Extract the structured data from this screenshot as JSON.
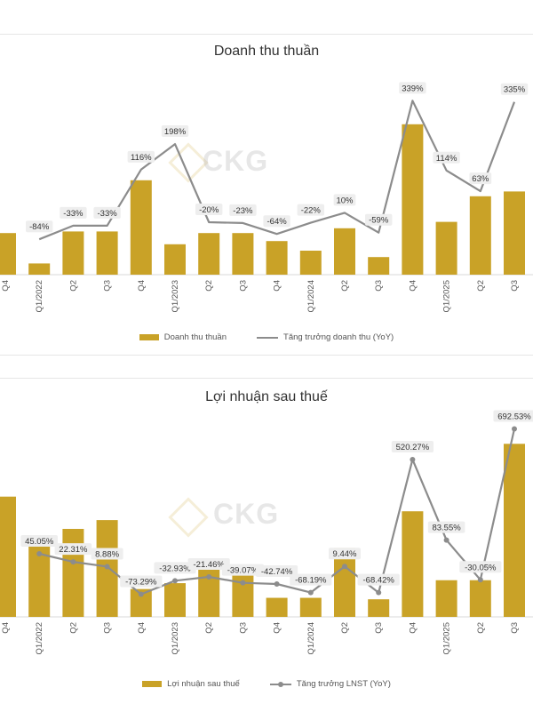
{
  "watermark": "CKG",
  "chart_data": [
    {
      "type": "bar",
      "title": "Doanh thu thuần",
      "categories": [
        "Q4",
        "Q1/2022",
        "Q2",
        "Q3",
        "Q4",
        "Q1/2023",
        "Q2",
        "Q3",
        "Q4",
        "Q1/2024",
        "Q2",
        "Q3",
        "Q4",
        "Q1/2025",
        "Q2",
        "Q3"
      ],
      "series": [
        {
          "name": "Doanh thu thuần",
          "type": "bar",
          "values": [
            13,
            3.5,
            13.5,
            13.5,
            29.5,
            9.5,
            13,
            13,
            10.5,
            7.5,
            14.5,
            5.5,
            47,
            16.5,
            24.5,
            26
          ]
        },
        {
          "name": "Tăng trưởng doanh thu (YoY)",
          "type": "line",
          "values": [
            null,
            -84,
            -33,
            -33,
            116,
            198,
            -20,
            -23,
            -64,
            -22,
            10,
            -59,
            339,
            114,
            63,
            335
          ]
        }
      ],
      "labels": [
        "",
        "-84%",
        "-33%",
        "-33%",
        "116%",
        "198%",
        "-20%",
        "-23%",
        "-64%",
        "-22%",
        "10%",
        "-59%",
        "339%",
        "114%",
        "63%",
        "335%"
      ],
      "legend": [
        "Doanh thu thuần",
        "Tăng trưởng doanh thu (YoY)"
      ],
      "legend_position": "bottom",
      "bar_color": "#c9a227",
      "line_color": "#8c8c8c"
    },
    {
      "type": "bar",
      "title": "Lợi nhuận sau thuế",
      "categories": [
        "Q4",
        "Q1/2022",
        "Q2",
        "Q3",
        "Q4",
        "Q1/2023",
        "Q2",
        "Q3",
        "Q4",
        "Q1/2024",
        "Q2",
        "Q3",
        "Q4",
        "Q1/2025",
        "Q2",
        "Q3"
      ],
      "series": [
        {
          "name": "Lợi nhuận sau thuế",
          "type": "bar",
          "values": [
            41,
            26,
            30,
            33,
            9.5,
            11.5,
            19,
            14.5,
            6.5,
            6.5,
            23.5,
            6,
            36,
            12.5,
            12.5,
            59
          ]
        },
        {
          "name": "Tăng trưởng LNST (YoY)",
          "type": "line",
          "values": [
            null,
            45.05,
            22.31,
            8.88,
            -73.29,
            -32.93,
            -21.46,
            -39.07,
            -42.74,
            -68.19,
            9.44,
            -68.42,
            520.27,
            83.55,
            -30.05,
            692.53
          ]
        }
      ],
      "labels": [
        "",
        "45.05%",
        "22.31%",
        "8.88%",
        "-73.29%",
        "-32.93%",
        "-21.46%",
        "-39.07%",
        "-42.74%",
        "-68.19%",
        "9.44%",
        "-68.42%",
        "520.27%",
        "83.55%",
        "-30.05%",
        "692.53%"
      ],
      "legend": [
        "Lợi nhuận sau thuế",
        "Tăng trưởng LNST (YoY)"
      ],
      "legend_position": "bottom",
      "bar_color": "#c9a227",
      "line_color": "#8c8c8c"
    }
  ]
}
